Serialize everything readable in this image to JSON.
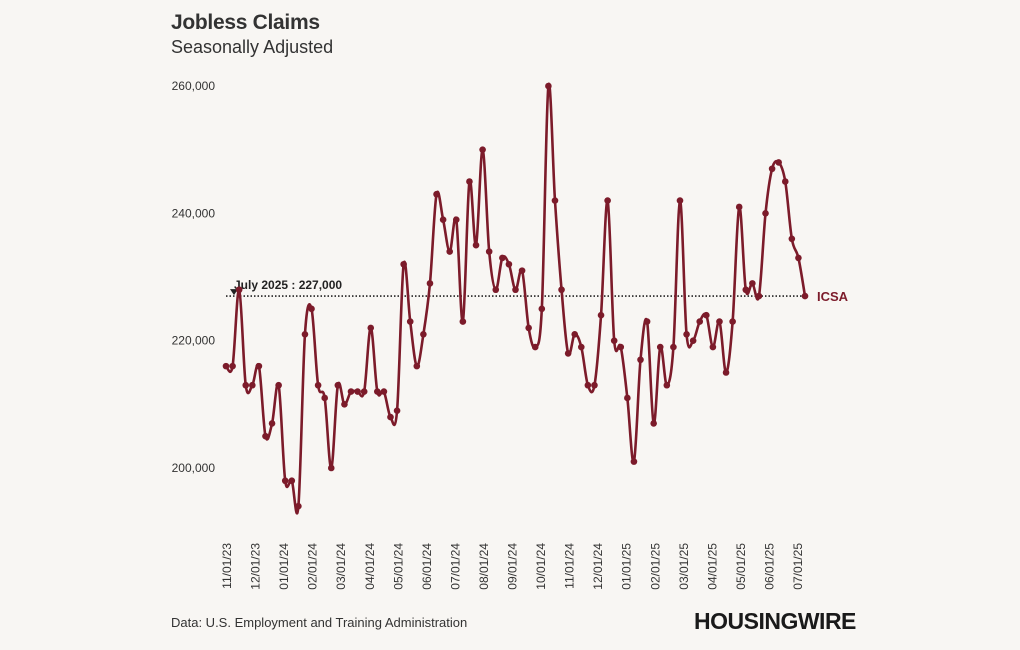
{
  "header": {
    "title": "Jobless Claims",
    "subtitle": "Seasonally Adjusted"
  },
  "footer": {
    "source": "Data: U.S. Employment and Training Administration",
    "logo": "HOUSINGWIRE"
  },
  "colors": {
    "series": "#7c1b2a",
    "text": "#333333",
    "background": "#f8f6f3"
  },
  "chart_data": {
    "type": "line",
    "title": "Jobless Claims",
    "subtitle": "Seasonally Adjusted",
    "xlabel": "",
    "ylabel": "",
    "ylim": [
      190000,
      262000
    ],
    "yticks": [
      200000,
      220000,
      240000,
      260000
    ],
    "ytick_labels": [
      "200,000",
      "220,000",
      "240,000",
      "260,000"
    ],
    "xtick_labels": [
      "11/01/23",
      "12/01/23",
      "01/01/24",
      "02/01/24",
      "03/01/24",
      "04/01/24",
      "05/01/24",
      "06/01/24",
      "07/01/24",
      "08/01/24",
      "09/01/24",
      "10/01/24",
      "11/01/24",
      "12/01/24",
      "01/01/25",
      "02/01/25",
      "03/01/25",
      "04/01/25",
      "05/01/25",
      "06/01/25",
      "07/01/25"
    ],
    "series": [
      {
        "name": "ICSA",
        "values": [
          216000,
          216000,
          228000,
          213000,
          213000,
          216000,
          205000,
          207000,
          213000,
          198000,
          198000,
          194000,
          221000,
          225000,
          213000,
          211000,
          200000,
          213000,
          210000,
          212000,
          212000,
          212000,
          222000,
          212000,
          212000,
          208000,
          209000,
          232000,
          223000,
          216000,
          221000,
          229000,
          243000,
          239000,
          234000,
          239000,
          223000,
          245000,
          235000,
          250000,
          234000,
          228000,
          233000,
          232000,
          228000,
          231000,
          222000,
          219000,
          225000,
          260000,
          242000,
          228000,
          218000,
          221000,
          219000,
          213000,
          213000,
          224000,
          242000,
          220000,
          219000,
          211000,
          201000,
          217000,
          223000,
          207000,
          219000,
          213000,
          219000,
          242000,
          221000,
          220000,
          223000,
          224000,
          219000,
          223000,
          215000,
          223000,
          241000,
          228000,
          229000,
          227000,
          240000,
          247000,
          248000,
          245000,
          236000,
          233000,
          227000
        ]
      }
    ],
    "annotation": {
      "label": "July 2025 : 227,000",
      "value": 227000,
      "series_label": "ICSA"
    }
  }
}
